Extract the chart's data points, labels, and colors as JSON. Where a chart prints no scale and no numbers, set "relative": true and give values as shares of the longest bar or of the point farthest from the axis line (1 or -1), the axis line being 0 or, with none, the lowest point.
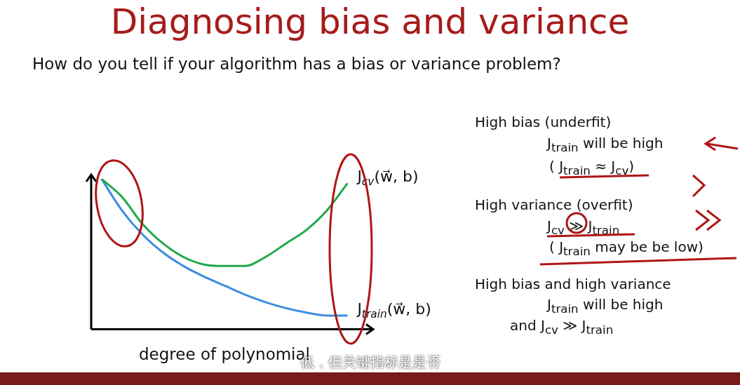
{
  "chart_data": {
    "type": "line",
    "title": "Diagnosing bias and variance",
    "subtitle": "How do you tell if your algorithm has a bias or variance problem?",
    "xlabel": "degree of polynomial",
    "relative": true,
    "legend": false,
    "grid": false,
    "marker": "none",
    "line_style": "solid",
    "categories": [
      null,
      null,
      null,
      null,
      null,
      null,
      null,
      null,
      null,
      null,
      null,
      null,
      null
    ],
    "series": [
      {
        "name": "J$_{cv}$(w⃗, b)",
        "color": "#1fa84a",
        "values": [
          1.0,
          0.88,
          0.7,
          0.57,
          0.48,
          0.43,
          0.42,
          0.42,
          0.48,
          0.57,
          0.66,
          0.79,
          0.97
        ]
      },
      {
        "name": "J$_{train}$(w⃗, b)",
        "color": "#3a8de0",
        "values": [
          1.0,
          0.79,
          0.63,
          0.51,
          0.42,
          0.35,
          0.29,
          0.23,
          0.18,
          0.14,
          0.11,
          0.09,
          0.09
        ]
      }
    ],
    "annotations": [
      "High bias (underfit)",
      "J$_{train}$ will be high",
      "( J$_{train}$ ≈ J$_{cv}$)",
      "High variance (overfit)",
      "J$_{cv}$ ≫ J$_{train}$",
      "( J$_{train}$ may be be low)",
      "High bias and high variance",
      "J$_{train}$ will be high",
      "and J$_{cv}$ ≫ J$_{train}$",
      "低，但关键指标是是否"
    ]
  }
}
